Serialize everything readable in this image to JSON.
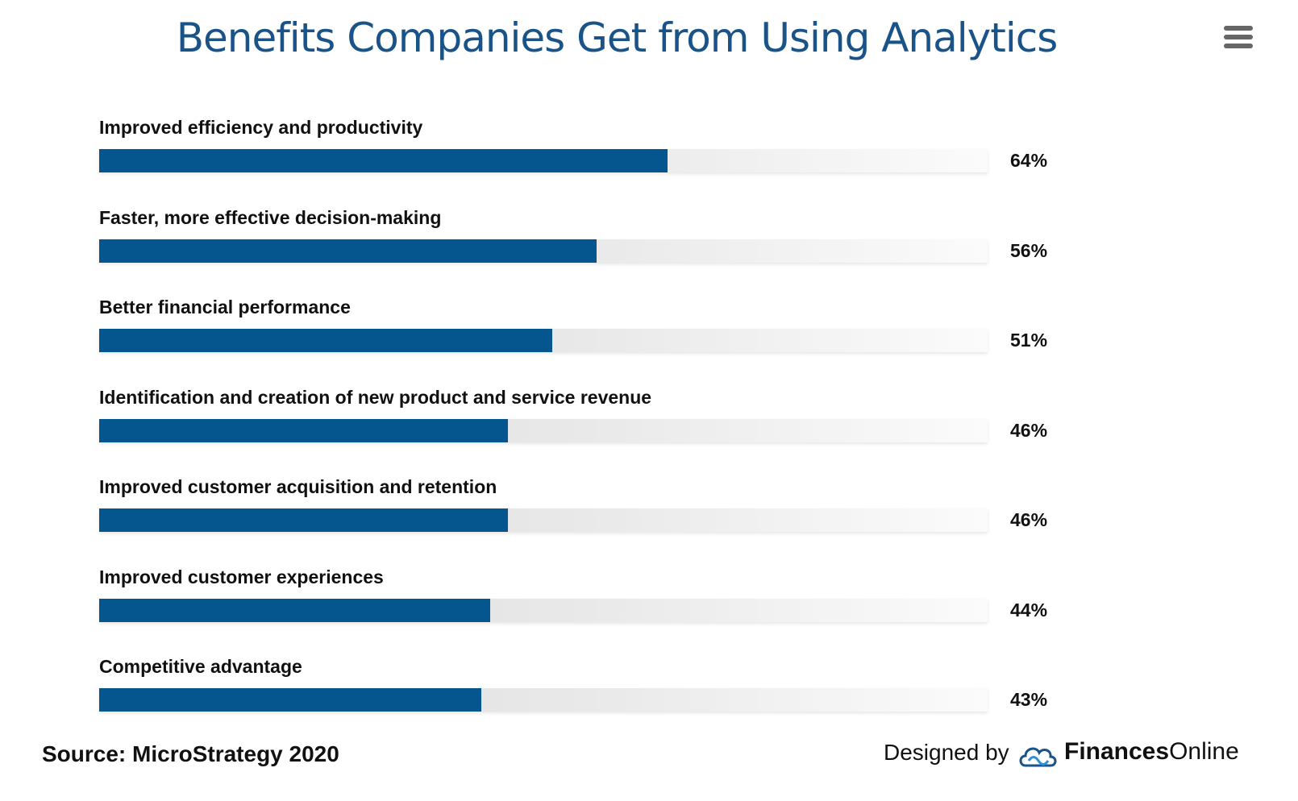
{
  "chart_data": {
    "type": "bar",
    "orientation": "horizontal",
    "title": "Benefits Companies Get from Using Analytics",
    "categories": [
      "Improved efficiency and productivity",
      "Faster, more effective decision-making",
      "Better financial performance",
      "Identification and creation of new product and service revenue",
      "Improved customer acquisition and retention",
      "Improved customer experiences",
      "Competitive advantage"
    ],
    "values": [
      64,
      56,
      51,
      46,
      46,
      44,
      43
    ],
    "value_labels": [
      "64%",
      "56%",
      "51%",
      "46%",
      "46%",
      "44%",
      "43%"
    ],
    "xlim": [
      0,
      100
    ],
    "unit": "%",
    "grid": false,
    "legend": "none"
  },
  "menu": {
    "icon": "hamburger-menu-icon"
  },
  "footer": {
    "source": "Source: MicroStrategy 2020",
    "designed_by": "Designed by",
    "brand_bold": "Finances",
    "brand_light": "Online",
    "brand_icon": "cloud-logo-icon"
  },
  "colors": {
    "title": "#1a5387",
    "bar": "#05558f",
    "track": "#e6e6e6",
    "text": "#111111",
    "menu_icon": "#666666"
  }
}
